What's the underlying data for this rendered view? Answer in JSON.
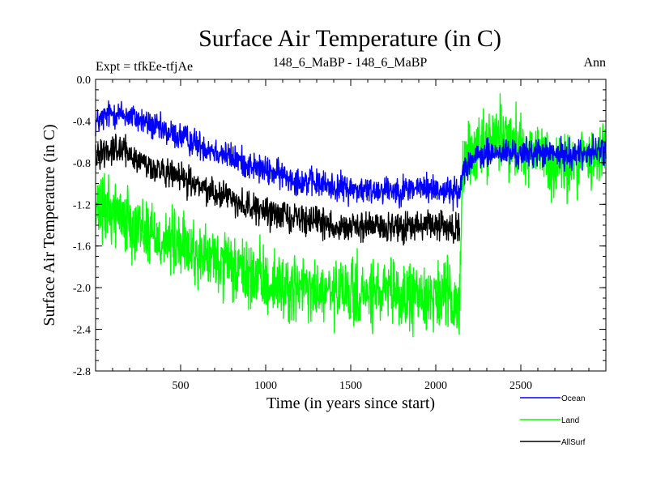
{
  "chart_data": {
    "type": "line",
    "title": "Surface Air Temperature (in C)",
    "subtitle_left": "Expt = tfkEe-tfjAe",
    "subtitle_center": "148_6_MaBP - 148_6_MaBP",
    "subtitle_right": "Ann",
    "xlabel": "Time (in years since start)",
    "ylabel": "Surface Air Temperature (in C)",
    "xlim": [
      0,
      3000
    ],
    "ylim": [
      -2.8,
      0.0
    ],
    "xticks": [
      500,
      1000,
      1500,
      2000,
      2500
    ],
    "xtick_labels": [
      "500",
      "1000",
      "1500",
      "2000",
      "2500"
    ],
    "yticks": [
      0.0,
      -0.4,
      -0.8,
      -1.2,
      -1.6,
      -2.0,
      -2.4,
      -2.8
    ],
    "ytick_labels": [
      "0.0",
      "-0.4",
      "-0.8",
      "-1.2",
      "-1.6",
      "-2.0",
      "-2.4",
      "-2.8"
    ],
    "grid": false,
    "legend_position": "bottom-right, below plot",
    "series": [
      {
        "name": "Ocean",
        "color": "#0000ff",
        "x": [
          0,
          100,
          200,
          300,
          400,
          500,
          600,
          700,
          800,
          900,
          1000,
          1100,
          1200,
          1300,
          1400,
          1500,
          1600,
          1700,
          1800,
          1900,
          2000,
          2100,
          2140,
          2160,
          2200,
          2300,
          2400,
          2500,
          2600,
          2700,
          2800,
          2900,
          3000
        ],
        "values": [
          -0.42,
          -0.32,
          -0.35,
          -0.42,
          -0.5,
          -0.55,
          -0.62,
          -0.68,
          -0.75,
          -0.82,
          -0.88,
          -0.92,
          -0.97,
          -1.0,
          -1.03,
          -1.05,
          -1.07,
          -1.05,
          -1.06,
          -1.04,
          -1.05,
          -1.08,
          -1.1,
          -0.85,
          -0.78,
          -0.72,
          -0.7,
          -0.72,
          -0.7,
          -0.72,
          -0.72,
          -0.7,
          -0.68
        ],
        "noise": 0.12
      },
      {
        "name": "Land",
        "color": "#00ff00",
        "x": [
          0,
          100,
          200,
          300,
          400,
          500,
          600,
          700,
          800,
          900,
          1000,
          1100,
          1200,
          1300,
          1400,
          1500,
          1600,
          1700,
          1800,
          1900,
          2000,
          2100,
          2140,
          2160,
          2200,
          2300,
          2400,
          2500,
          2600,
          2700,
          2800,
          2900,
          3000
        ],
        "values": [
          -1.3,
          -1.25,
          -1.35,
          -1.45,
          -1.55,
          -1.6,
          -1.68,
          -1.75,
          -1.82,
          -1.88,
          -1.95,
          -1.98,
          -2.02,
          -2.05,
          -2.07,
          -2.05,
          -2.08,
          -2.06,
          -2.1,
          -2.08,
          -2.07,
          -2.1,
          -2.12,
          -0.85,
          -0.7,
          -0.6,
          -0.52,
          -0.65,
          -0.7,
          -0.85,
          -0.82,
          -0.75,
          -0.7
        ],
        "noise": 0.28
      },
      {
        "name": "AllSurf",
        "color": "#000000",
        "x": [
          0,
          100,
          200,
          300,
          400,
          500,
          600,
          700,
          800,
          900,
          1000,
          1100,
          1200,
          1300,
          1400,
          1500,
          1600,
          1700,
          1800,
          1900,
          2000,
          2100,
          2140
        ],
        "values": [
          -0.72,
          -0.65,
          -0.72,
          -0.82,
          -0.9,
          -0.95,
          -1.02,
          -1.08,
          -1.14,
          -1.22,
          -1.28,
          -1.3,
          -1.33,
          -1.37,
          -1.4,
          -1.42,
          -1.42,
          -1.41,
          -1.43,
          -1.41,
          -1.41,
          -1.44,
          -1.45
        ],
        "noise": 0.12
      }
    ]
  }
}
